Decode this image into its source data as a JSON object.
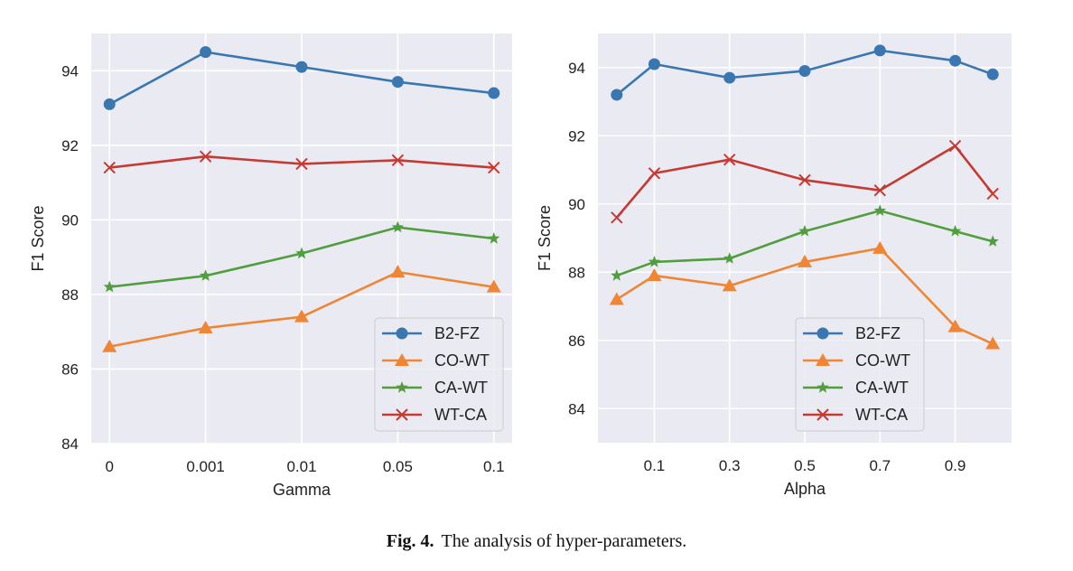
{
  "caption": {
    "label": "Fig. 4.",
    "text": "The analysis of hyper-parameters."
  },
  "chart_data": [
    {
      "type": "line",
      "title": "",
      "xlabel": "Gamma",
      "ylabel": "F1 Score",
      "x_type": "categorical",
      "categories": [
        "0",
        "0.001",
        "0.01",
        "0.05",
        "0.1"
      ],
      "ylim": [
        84,
        95
      ],
      "yticks": [
        84,
        86,
        88,
        90,
        92,
        94
      ],
      "grid": true,
      "legend": "bottom-right",
      "series": [
        {
          "name": "B2-FZ",
          "color": "#3a76b0",
          "marker": "circle",
          "values": [
            93.1,
            94.5,
            94.1,
            93.7,
            93.4
          ]
        },
        {
          "name": "CO-WT",
          "color": "#ef8636",
          "marker": "triangle",
          "values": [
            86.6,
            87.1,
            87.4,
            88.6,
            88.2
          ]
        },
        {
          "name": "CA-WT",
          "color": "#519e3e",
          "marker": "star",
          "values": [
            88.2,
            88.5,
            89.1,
            89.8,
            89.5
          ]
        },
        {
          "name": "WT-CA",
          "color": "#c53a32",
          "marker": "x",
          "values": [
            91.4,
            91.7,
            91.5,
            91.6,
            91.4
          ]
        }
      ]
    },
    {
      "type": "line",
      "title": "",
      "xlabel": "Alpha",
      "ylabel": "F1 Score",
      "x_type": "numeric",
      "x": [
        0,
        0.1,
        0.3,
        0.5,
        0.7,
        0.9,
        1.0
      ],
      "xlim": [
        -0.05,
        1.05
      ],
      "xticks": [
        "0.1",
        "0.3",
        "0.5",
        "0.7",
        "0.9"
      ],
      "ylim": [
        83,
        95
      ],
      "yticks": [
        84,
        86,
        88,
        90,
        92,
        94
      ],
      "grid": true,
      "legend": "bottom-center",
      "series": [
        {
          "name": "B2-FZ",
          "color": "#3a76b0",
          "marker": "circle",
          "values": [
            93.2,
            94.1,
            93.7,
            93.9,
            94.5,
            94.2,
            93.8
          ]
        },
        {
          "name": "CO-WT",
          "color": "#ef8636",
          "marker": "triangle",
          "values": [
            87.2,
            87.9,
            87.6,
            88.3,
            88.7,
            86.4,
            85.9
          ]
        },
        {
          "name": "CA-WT",
          "color": "#519e3e",
          "marker": "star",
          "values": [
            87.9,
            88.3,
            88.4,
            89.2,
            89.8,
            89.2,
            88.9
          ]
        },
        {
          "name": "WT-CA",
          "color": "#c53a32",
          "marker": "x",
          "values": [
            89.6,
            90.9,
            91.3,
            90.7,
            90.4,
            91.7,
            90.3
          ]
        }
      ]
    }
  ]
}
